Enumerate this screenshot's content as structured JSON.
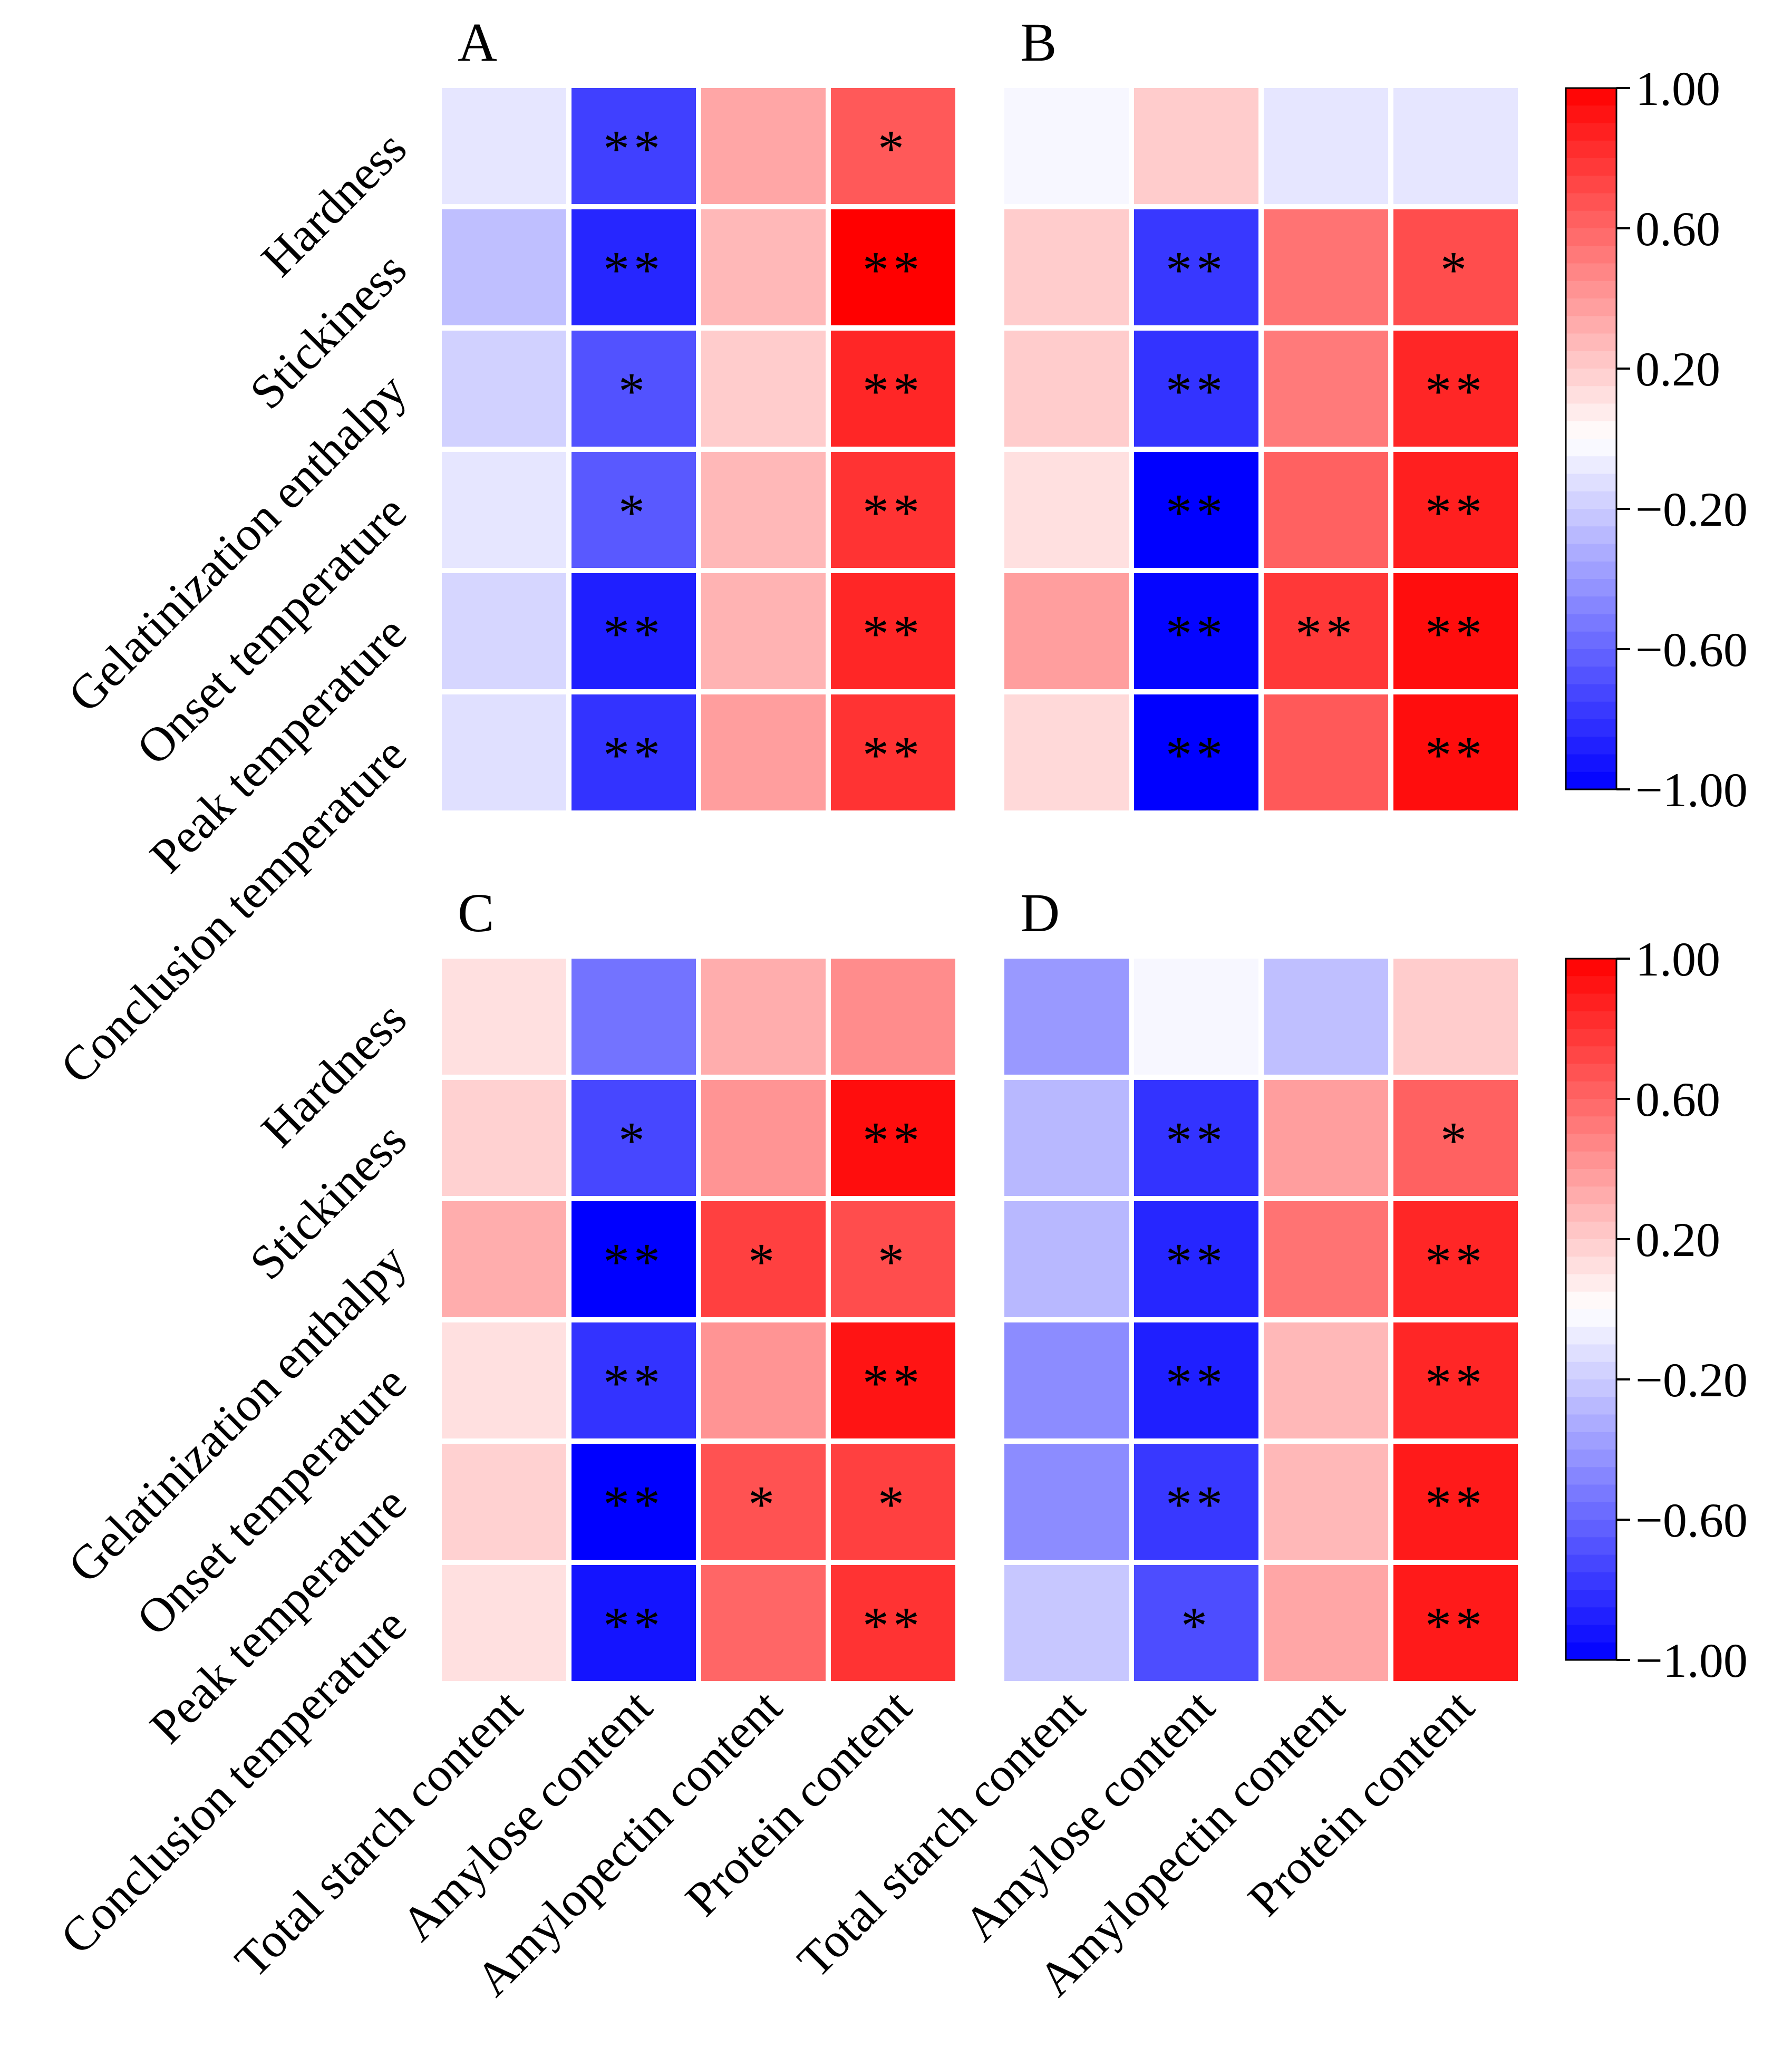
{
  "colors": {
    "negative": "#0000ff",
    "neutral": "#ffffff",
    "positive": "#ff0000"
  },
  "chart_data": [
    {
      "type": "heatmap",
      "panel_label": "A",
      "rows": [
        "Hardness",
        "Stickiness",
        "Gelatinization enthalpy",
        "Onset temperature",
        "Peak temperature",
        "Conclusion temperature"
      ],
      "columns": [
        "",
        "",
        "",
        ""
      ],
      "values": [
        [
          -0.1,
          -0.75,
          0.35,
          0.65
        ],
        [
          -0.25,
          -0.85,
          0.28,
          1.0
        ],
        [
          -0.18,
          -0.68,
          0.2,
          0.85
        ],
        [
          -0.1,
          -0.65,
          0.28,
          0.8
        ],
        [
          -0.16,
          -0.88,
          0.3,
          0.85
        ],
        [
          -0.12,
          -0.8,
          0.38,
          0.8
        ]
      ],
      "significance": [
        [
          "",
          "**",
          "",
          "*"
        ],
        [
          "",
          "**",
          "",
          "**"
        ],
        [
          "",
          "*",
          "",
          "**"
        ],
        [
          "",
          "*",
          "",
          "**"
        ],
        [
          "",
          "**",
          "",
          "**"
        ],
        [
          "",
          "**",
          "",
          "**"
        ]
      ]
    },
    {
      "type": "heatmap",
      "panel_label": "B",
      "rows": [
        "",
        "",
        "",
        "",
        "",
        ""
      ],
      "columns": [
        "",
        "",
        "",
        ""
      ],
      "values": [
        [
          -0.03,
          0.2,
          -0.1,
          -0.1
        ],
        [
          0.2,
          -0.78,
          0.55,
          0.7
        ],
        [
          0.2,
          -0.8,
          0.52,
          0.85
        ],
        [
          0.12,
          -1.0,
          0.62,
          0.88
        ],
        [
          0.38,
          -0.98,
          0.78,
          0.95
        ],
        [
          0.15,
          -1.0,
          0.65,
          0.95
        ]
      ],
      "significance": [
        [
          "",
          "",
          "",
          ""
        ],
        [
          "",
          "**",
          "",
          "*"
        ],
        [
          "",
          "**",
          "",
          "**"
        ],
        [
          "",
          "**",
          "",
          "**"
        ],
        [
          "",
          "**",
          "**",
          "**"
        ],
        [
          "",
          "**",
          "",
          "**"
        ]
      ]
    },
    {
      "type": "heatmap",
      "panel_label": "C",
      "rows": [
        "Hardness",
        "Stickiness",
        "Gelatinization enthalpy",
        "Onset temperature",
        "Peak temperature",
        "Conclusion temperature"
      ],
      "columns": [
        "Total starch content",
        "Amylose content",
        "Amylopectin content",
        "Protein content"
      ],
      "values": [
        [
          0.12,
          -0.55,
          0.32,
          0.45
        ],
        [
          0.18,
          -0.72,
          0.42,
          0.95
        ],
        [
          0.32,
          -1.0,
          0.75,
          0.7
        ],
        [
          0.12,
          -0.8,
          0.42,
          0.92
        ],
        [
          0.18,
          -1.0,
          0.68,
          0.75
        ],
        [
          0.12,
          -0.92,
          0.6,
          0.8
        ]
      ],
      "significance": [
        [
          "",
          "",
          "",
          ""
        ],
        [
          "",
          "*",
          "",
          "**"
        ],
        [
          "",
          "**",
          "*",
          "*"
        ],
        [
          "",
          "**",
          "",
          "**"
        ],
        [
          "",
          "**",
          "*",
          "*"
        ],
        [
          "",
          "**",
          "",
          "**"
        ]
      ]
    },
    {
      "type": "heatmap",
      "panel_label": "D",
      "rows": [
        "",
        "",
        "",
        "",
        "",
        ""
      ],
      "columns": [
        "Total starch content",
        "Amylose content",
        "Amylopectin content",
        "Protein content"
      ],
      "values": [
        [
          -0.4,
          -0.03,
          -0.25,
          0.2
        ],
        [
          -0.28,
          -0.8,
          0.38,
          0.62
        ],
        [
          -0.28,
          -0.85,
          0.55,
          0.85
        ],
        [
          -0.45,
          -0.88,
          0.28,
          0.85
        ],
        [
          -0.45,
          -0.78,
          0.28,
          0.9
        ],
        [
          -0.22,
          -0.7,
          0.35,
          0.9
        ]
      ],
      "significance": [
        [
          "",
          "",
          "",
          ""
        ],
        [
          "",
          "**",
          "",
          "*"
        ],
        [
          "",
          "**",
          "",
          "**"
        ],
        [
          "",
          "**",
          "",
          "**"
        ],
        [
          "",
          "**",
          "",
          "**"
        ],
        [
          "",
          "*",
          "",
          "**"
        ]
      ]
    }
  ],
  "colorbar": {
    "range": [
      -1.0,
      1.0
    ],
    "ticks": [
      "1.00",
      "0.60",
      "0.20",
      "−0.20",
      "−0.60",
      "−1.00"
    ],
    "tick_values": [
      1.0,
      0.6,
      0.2,
      -0.2,
      -0.6,
      -1.0
    ],
    "steps": 40
  }
}
